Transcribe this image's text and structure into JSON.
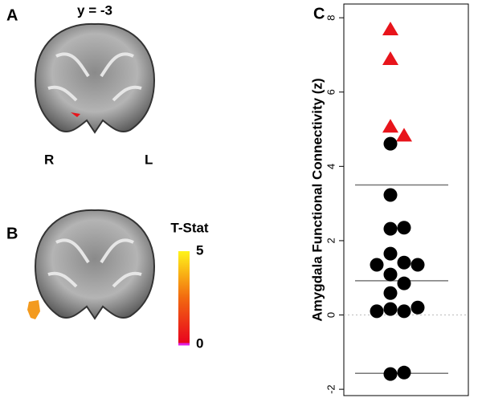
{
  "panels": {
    "a": {
      "label": "A",
      "slice": "y = -3",
      "right": "R",
      "left": "L"
    },
    "b": {
      "label": "B"
    },
    "c": {
      "label": "C"
    }
  },
  "colorbar": {
    "title": "T-Stat",
    "lim": [
      0,
      5
    ],
    "ticks": [
      5,
      0
    ]
  },
  "chart_data": {
    "type": "strip",
    "ylabel": "Amygdala Functional Connectivity (z)",
    "ylim": [
      -2.17,
      8.37
    ],
    "yticks": [
      -2,
      0,
      2,
      4,
      6,
      8
    ],
    "zero_line": true,
    "reference_lines": [
      3.5,
      0.92,
      -1.57
    ],
    "series": [
      {
        "marker": "triangle",
        "color": "#e8141b",
        "values": [
          7.68,
          6.88,
          5.06,
          4.82
        ]
      },
      {
        "marker": "circle",
        "color": "#000000",
        "values": [
          4.61,
          3.23,
          2.32,
          2.35,
          1.65,
          1.41,
          1.35,
          1.35,
          1.09,
          0.85,
          0.59,
          0.16,
          0.1,
          0.1,
          0.2,
          -1.59,
          -1.55
        ]
      }
    ]
  }
}
